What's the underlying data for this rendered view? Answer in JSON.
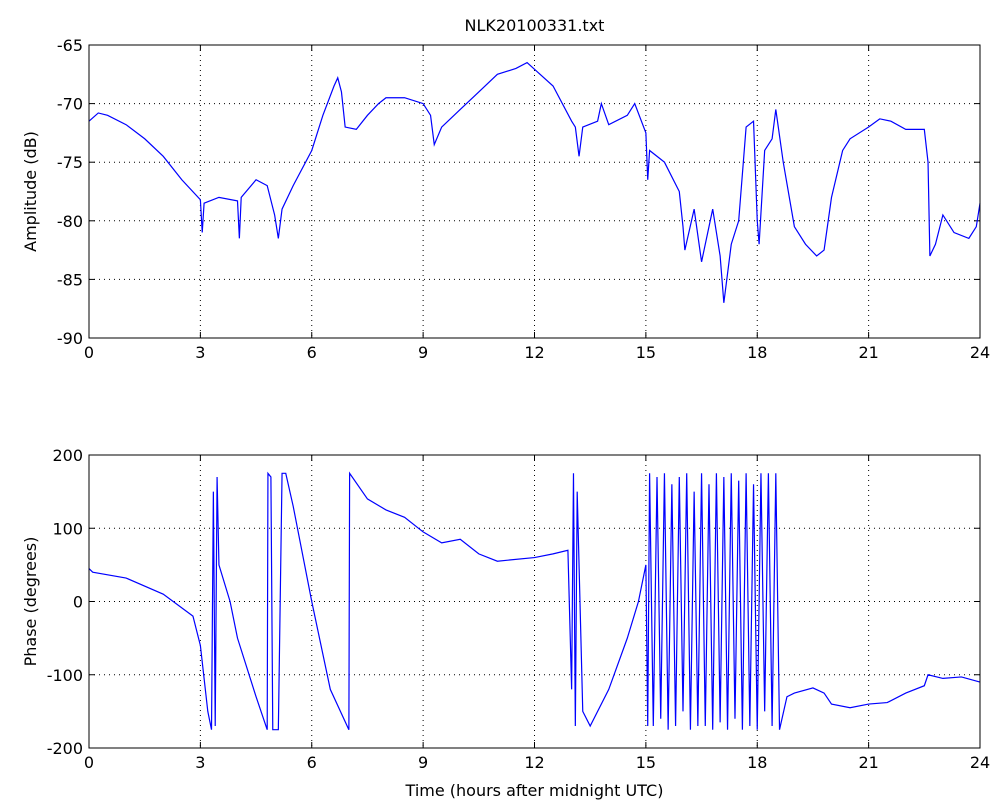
{
  "chart_data": [
    {
      "type": "line",
      "title": "NLK20100331.txt",
      "ylabel": "Amplitude (dB)",
      "color": "#0000ff",
      "grid": true,
      "xlim": [
        0,
        24
      ],
      "xticks": [
        0,
        3,
        6,
        9,
        12,
        15,
        18,
        21,
        24
      ],
      "ylim": [
        -90,
        -65
      ],
      "yticks": [
        -90,
        -85,
        -80,
        -75,
        -70,
        -65
      ],
      "x": [
        0,
        0.25,
        0.5,
        1,
        1.5,
        2,
        2.5,
        3,
        3.05,
        3.1,
        3.5,
        4,
        4.05,
        4.1,
        4.5,
        4.8,
        5,
        5.1,
        5.2,
        5.5,
        6,
        6.3,
        6.6,
        6.7,
        6.8,
        6.9,
        7.2,
        7.5,
        7.8,
        8,
        8.5,
        9,
        9.2,
        9.3,
        9.5,
        10,
        10.5,
        11,
        11.5,
        11.8,
        12.5,
        13,
        13.1,
        13.2,
        13.3,
        13.7,
        13.8,
        14,
        14.5,
        14.7,
        15,
        15.05,
        15.1,
        15.5,
        15.9,
        16,
        16.05,
        16.3,
        16.5,
        16.8,
        17,
        17.1,
        17.3,
        17.5,
        17.7,
        17.9,
        18,
        18.05,
        18.2,
        18.4,
        18.5,
        18.7,
        19,
        19.3,
        19.6,
        19.8,
        20,
        20.3,
        20.5,
        21,
        21.3,
        21.6,
        22,
        22.5,
        22.6,
        22.65,
        22.8,
        23,
        23.3,
        23.7,
        23.9,
        24
      ],
      "values": [
        -71.5,
        -70.8,
        -71,
        -71.8,
        -73,
        -74.5,
        -76.5,
        -78.2,
        -81,
        -78.5,
        -78,
        -78.3,
        -81.5,
        -78,
        -76.5,
        -77,
        -79.5,
        -81.5,
        -79,
        -77,
        -74,
        -71,
        -68.5,
        -67.8,
        -69,
        -72,
        -72.2,
        -71,
        -70,
        -69.5,
        -69.5,
        -70,
        -71,
        -73.5,
        -72,
        -70.5,
        -69,
        -67.5,
        -67,
        -66.5,
        -68.5,
        -71.5,
        -72,
        -74.5,
        -72,
        -71.5,
        -70,
        -71.8,
        -71,
        -70,
        -72.5,
        -76.5,
        -74,
        -75,
        -77.5,
        -80.5,
        -82.5,
        -79,
        -83.5,
        -79,
        -83,
        -87,
        -82,
        -80,
        -72,
        -71.5,
        -80,
        -82,
        -74,
        -73,
        -70.5,
        -75,
        -80.5,
        -82,
        -83,
        -82.5,
        -78,
        -74,
        -73,
        -72,
        -71.3,
        -71.5,
        -72.2,
        -72.2,
        -75,
        -83,
        -82,
        -79.5,
        -81,
        -81.5,
        -80.5,
        -78.5
      ]
    },
    {
      "type": "line",
      "ylabel": "Phase (degrees)",
      "xlabel": "Time (hours after midnight UTC)",
      "color": "#0000ff",
      "grid": true,
      "xlim": [
        0,
        24
      ],
      "xticks": [
        0,
        3,
        6,
        9,
        12,
        15,
        18,
        21,
        24
      ],
      "ylim": [
        -200,
        200
      ],
      "yticks": [
        -200,
        -100,
        0,
        100,
        200
      ],
      "x": [
        0,
        0.1,
        1,
        2,
        2.8,
        3,
        3.2,
        3.3,
        3.35,
        3.4,
        3.45,
        3.5,
        3.8,
        4,
        4.5,
        4.8,
        4.82,
        4.9,
        4.95,
        5.1,
        5.2,
        5.3,
        5.5,
        6,
        6.5,
        7,
        7.02,
        7.5,
        8,
        8.5,
        9,
        9.5,
        10,
        10.5,
        11,
        12,
        12.5,
        12.9,
        13,
        13.05,
        13.1,
        13.15,
        13.3,
        13.5,
        14,
        14.5,
        14.8,
        15,
        15.05,
        15.1,
        15.2,
        15.3,
        15.4,
        15.5,
        15.6,
        15.7,
        15.8,
        15.9,
        16,
        16.1,
        16.2,
        16.3,
        16.4,
        16.5,
        16.6,
        16.7,
        16.8,
        16.9,
        17,
        17.1,
        17.2,
        17.3,
        17.4,
        17.5,
        17.6,
        17.7,
        17.8,
        17.9,
        18,
        18.1,
        18.2,
        18.3,
        18.4,
        18.5,
        18.6,
        18.8,
        19,
        19.5,
        19.8,
        20,
        20.5,
        21,
        21.5,
        22,
        22.5,
        22.6,
        23,
        23.5,
        24
      ],
      "values": [
        45,
        40,
        32,
        10,
        -20,
        -60,
        -150,
        -175,
        150,
        -170,
        170,
        50,
        0,
        -50,
        -130,
        -175,
        175,
        170,
        -175,
        -175,
        175,
        175,
        130,
        0,
        -120,
        -175,
        175,
        140,
        125,
        115,
        95,
        80,
        85,
        65,
        55,
        60,
        65,
        70,
        -120,
        175,
        -170,
        150,
        -150,
        -170,
        -120,
        -50,
        0,
        50,
        -170,
        175,
        -170,
        170,
        -160,
        175,
        -175,
        160,
        -170,
        170,
        -150,
        175,
        -175,
        150,
        -170,
        175,
        -170,
        160,
        -175,
        175,
        -165,
        170,
        -175,
        175,
        -160,
        165,
        -175,
        175,
        -170,
        160,
        -175,
        175,
        -150,
        175,
        -170,
        175,
        -175,
        -130,
        -125,
        -118,
        -125,
        -140,
        -145,
        -140,
        -138,
        -125,
        -115,
        -100,
        -105,
        -103,
        -110
      ]
    }
  ]
}
